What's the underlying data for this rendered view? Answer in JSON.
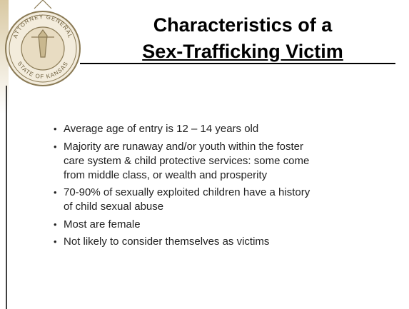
{
  "seal": {
    "top": "ATTORNEY GENERAL",
    "bottom": "STATE OF KANSAS"
  },
  "title": {
    "line1": "Characteristics of a",
    "line2": "Sex-Trafficking Victim"
  },
  "bullets": [
    {
      "lines": [
        "Average age of entry is 12 – 14 years old"
      ]
    },
    {
      "lines": [
        "Majority are runaway and/or youth within the foster",
        "care system & child protective services: some come",
        "from middle class, or wealth and prosperity"
      ]
    },
    {
      "lines": [
        "70-90% of sexually exploited children have a history",
        "of  child sexual abuse"
      ]
    },
    {
      "lines": [
        "Most are female"
      ]
    },
    {
      "lines": [
        "Not likely to consider themselves as victims"
      ]
    }
  ]
}
